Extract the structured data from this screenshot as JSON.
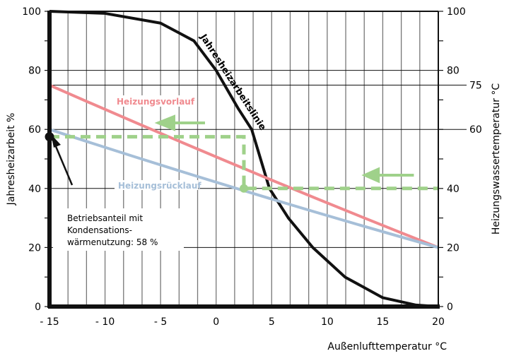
{
  "chart_data": {
    "type": "line",
    "xlabel": "Außenlufttemperatur °C",
    "ylabel_left": "Jahresheizarbeit %",
    "ylabel_right": "Heizungswassertemperatur °C",
    "xlim": [
      -15,
      20
    ],
    "ylim": [
      0,
      100
    ],
    "x_ticks": [
      "- 15",
      "- 10",
      "- 5",
      "0",
      "5",
      "10",
      "15",
      "20"
    ],
    "x_tick_values": [
      -15,
      -10,
      -5,
      0,
      5,
      10,
      15,
      20
    ],
    "y_ticks_left": [
      "0",
      "20",
      "40",
      "60",
      "80",
      "100"
    ],
    "y_ticks_right": [
      "0",
      "20",
      "40",
      "60",
      "75",
      "80",
      "100"
    ],
    "grid": true,
    "series": [
      {
        "name": "Jahresheizarbeitslinie",
        "color": "#111111",
        "x": [
          -15,
          -10,
          -5,
          -2,
          0,
          2,
          3.2,
          4,
          4.8,
          6.5,
          8.7,
          11.6,
          15,
          18,
          20
        ],
        "y": [
          100,
          99.3,
          96,
          90,
          80,
          67,
          60,
          50,
          40,
          30,
          20,
          10,
          3,
          0.5,
          0
        ]
      },
      {
        "name": "Heizungsvorlauf",
        "color": "#f08a8f",
        "x": [
          -15,
          20
        ],
        "y": [
          75,
          20
        ]
      },
      {
        "name": "Heizungsrücklauf",
        "color": "#a6bfd8",
        "x": [
          -15,
          20
        ],
        "y": [
          60,
          20
        ]
      }
    ],
    "annotations": {
      "operating_share_text": [
        "Betriebsanteil mit",
        "Kondensations-",
        "wärmenutzung: 58 %"
      ],
      "operating_share_value": 58,
      "condensation_point": {
        "x": 2.5,
        "y": 40
      },
      "guide_color": "#9fd18a"
    }
  }
}
